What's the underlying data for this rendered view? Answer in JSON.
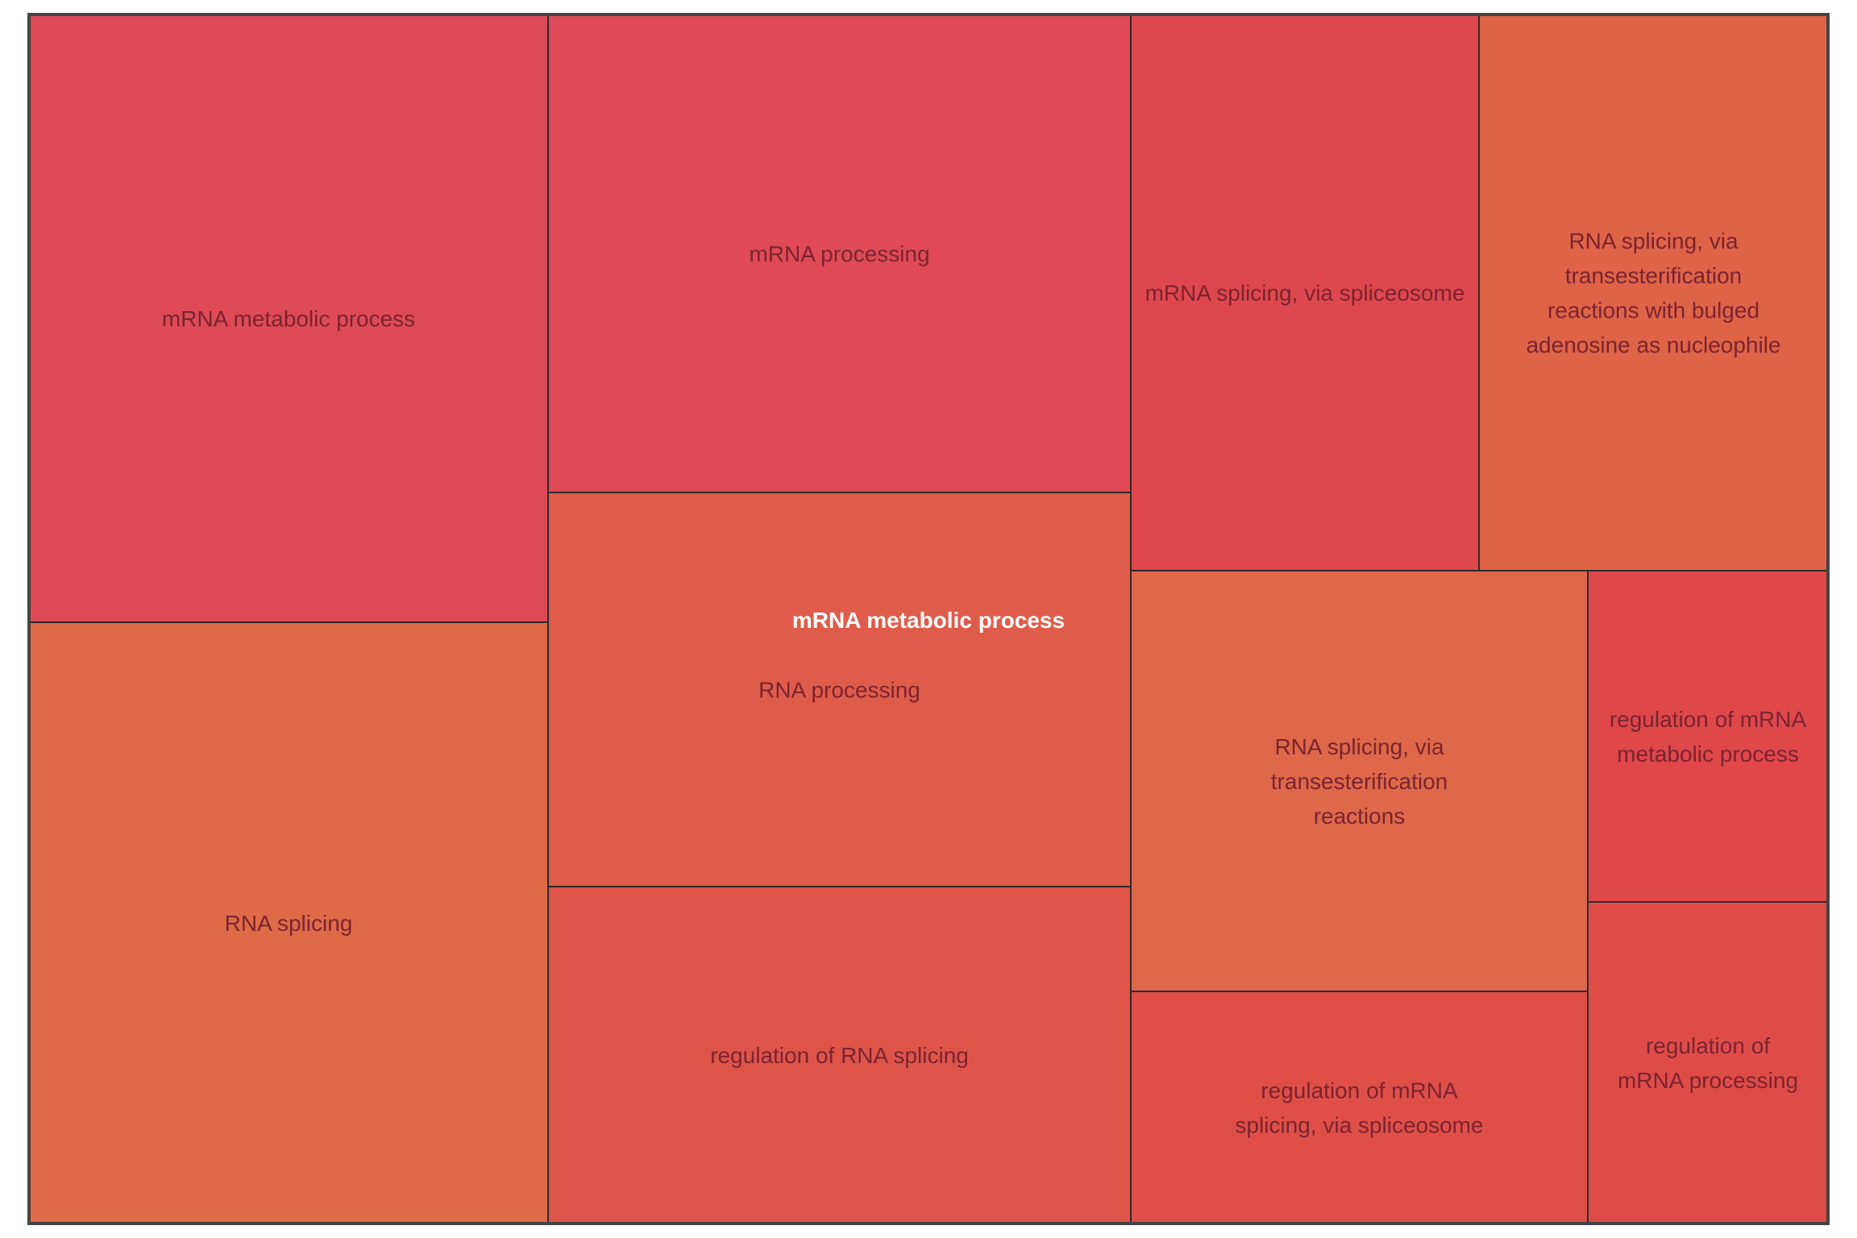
{
  "chart_data": {
    "type": "treemap",
    "group_label": "mRNA metabolic process",
    "colors": {
      "border": "#2b2b2b",
      "text": "#7a2330",
      "group_text": "#ffffff"
    },
    "tiles": [
      {
        "label": "mRNA metabolic process",
        "lines": [
          "mRNA metabolic process"
        ],
        "value": 13.9,
        "color": "#df4a57"
      },
      {
        "label": "RNA splicing",
        "lines": [
          "RNA splicing"
        ],
        "value": 13.7,
        "color": "#de6a48"
      },
      {
        "label": "mRNA processing",
        "lines": [
          "mRNA processing"
        ],
        "value": 12.5,
        "color": "#df4a56"
      },
      {
        "label": "RNA processing",
        "lines": [
          "RNA processing"
        ],
        "value": 10.3,
        "color": "#df5c4a"
      },
      {
        "label": "regulation of RNA splicing",
        "lines": [
          "regulation of RNA splicing"
        ],
        "value": 8.8,
        "color": "#df5449"
      },
      {
        "label": "mRNA splicing, via spliceosome",
        "lines": [
          "mRNA splicing, via spliceosome"
        ],
        "value": 8.6,
        "color": "#df474e"
      },
      {
        "label": "RNA splicing, via transesterification reactions with bulged adenosine as nucleophile",
        "lines": [
          "RNA splicing, via",
          "transesterification",
          "reactions with bulged",
          "adenosine as nucleophile"
        ],
        "value": 8.6,
        "color": "#df6347"
      },
      {
        "label": "RNA splicing, via transesterification reactions",
        "lines": [
          "RNA splicing, via",
          "transesterification",
          "reactions"
        ],
        "value": 8.6,
        "color": "#de6849"
      },
      {
        "label": "regulation of mRNA splicing, via spliceosome",
        "lines": [
          "regulation of mRNA",
          "splicing, via spliceosome"
        ],
        "value": 4.7,
        "color": "#df4f48"
      },
      {
        "label": "regulation of mRNA metabolic process",
        "lines": [
          "regulation of mRNA",
          "metabolic process"
        ],
        "value": 3.5,
        "color": "#df4749"
      },
      {
        "label": "regulation of mRNA processing",
        "lines": [
          "regulation of",
          "mRNA processing"
        ],
        "value": 3.4,
        "color": "#df4c48"
      }
    ]
  }
}
